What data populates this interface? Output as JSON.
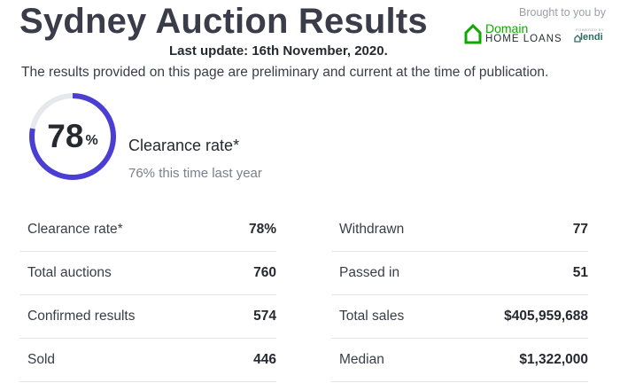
{
  "header": {
    "title": "Sydney Auction Results",
    "last_update": "Last update: 16th November, 2020.",
    "brought_to_you_by": "Brought to you by",
    "sponsor": {
      "domain": "Domain",
      "home_loans": "HOME LOANS",
      "powered_by": "POWERED BY",
      "lendi": "lendi"
    },
    "disclaimer": "The results provided on this page are preliminary and current at the time of publication."
  },
  "clearance": {
    "value": "78",
    "unit": "%",
    "fraction": 0.78,
    "label": "Clearance rate*",
    "last_year": "76% this time last year"
  },
  "stats": {
    "left": [
      {
        "label": "Clearance rate*",
        "value": "78%"
      },
      {
        "label": "Total auctions",
        "value": "760"
      },
      {
        "label": "Confirmed results",
        "value": "574"
      },
      {
        "label": "Sold",
        "value": "446"
      }
    ],
    "right": [
      {
        "label": "Withdrawn",
        "value": "77"
      },
      {
        "label": "Passed in",
        "value": "51"
      },
      {
        "label": "Total sales",
        "value": "$405,959,688"
      },
      {
        "label": "Median",
        "value": "$1,322,000"
      }
    ]
  },
  "colors": {
    "ring_fill": "#4a3fd2",
    "ring_track": "#e6e8ec",
    "domain_green": "#0ea800",
    "text_dark": "#262930"
  }
}
